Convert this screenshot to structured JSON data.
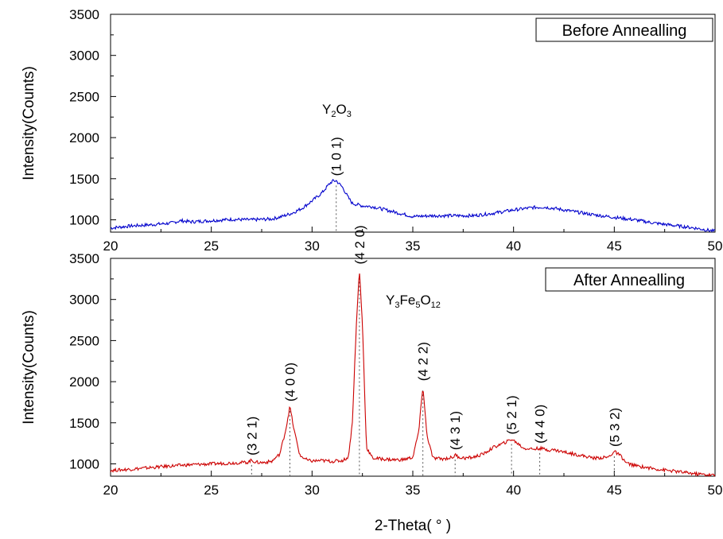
{
  "chart_data": [
    {
      "type": "line",
      "title": "",
      "legend": "Before Annealling",
      "legend_position": "top-right",
      "xlabel": "",
      "ylabel": "Intensity(Counts)",
      "xlim": [
        20,
        50
      ],
      "ylim": [
        850,
        3500
      ],
      "grid": false,
      "color": "#0000cc",
      "x_ticks": [
        "20",
        "25",
        "30",
        "35",
        "40",
        "45",
        "50"
      ],
      "y_ticks": [
        "1000",
        "1500",
        "2000",
        "2500",
        "3000",
        "3500"
      ],
      "series": [
        {
          "x": [
            20,
            21,
            22,
            23,
            23.5,
            24,
            25,
            26,
            27,
            28,
            28.5,
            29,
            29.5,
            30,
            30.5,
            30.8,
            31,
            31.2,
            31.5,
            31.8,
            32,
            32.5,
            33,
            34,
            35,
            36,
            37,
            38,
            39,
            40,
            41,
            41.5,
            42,
            43,
            44,
            45,
            46,
            47,
            48,
            49,
            50
          ],
          "y": [
            900,
            925,
            940,
            960,
            990,
            975,
            990,
            1005,
            1000,
            1010,
            1040,
            1080,
            1140,
            1230,
            1330,
            1420,
            1470,
            1475,
            1400,
            1270,
            1200,
            1170,
            1160,
            1100,
            1040,
            1050,
            1050,
            1050,
            1080,
            1120,
            1150,
            1155,
            1140,
            1100,
            1060,
            1030,
            1000,
            960,
            930,
            900,
            860
          ]
        }
      ],
      "peaks": [
        {
          "x": 31.2,
          "y": 1475,
          "hkl": "(1 0 1)"
        }
      ],
      "compound": {
        "base": "Y",
        "parts": [
          [
            "Y",
            ""
          ],
          [
            "2",
            "sub"
          ],
          [
            "O",
            ""
          ],
          [
            "3",
            "sub"
          ]
        ]
      }
    },
    {
      "type": "line",
      "title": "",
      "legend": "After Annealling",
      "legend_position": "top-right",
      "xlabel": "2-Theta( ° )",
      "ylabel": "Intensity(Counts)",
      "xlim": [
        20,
        50
      ],
      "ylim": [
        850,
        3500
      ],
      "grid": false,
      "color": "#cc0000",
      "x_ticks": [
        "20",
        "25",
        "30",
        "35",
        "40",
        "45",
        "50"
      ],
      "y_ticks": [
        "1000",
        "1500",
        "2000",
        "2500",
        "3000",
        "3500"
      ],
      "series": [
        {
          "x": [
            20,
            21,
            22,
            23,
            24,
            25,
            26,
            26.8,
            27,
            27.2,
            27.5,
            28,
            28.4,
            28.7,
            28.9,
            29.1,
            29.4,
            29.8,
            30,
            30.5,
            31,
            31.5,
            31.8,
            32,
            32.2,
            32.35,
            32.5,
            32.7,
            33,
            33.5,
            34,
            34.5,
            35,
            35.3,
            35.5,
            35.7,
            36,
            36.5,
            37,
            37.1,
            37.3,
            37.6,
            38,
            38.5,
            39,
            39.5,
            39.9,
            40.2,
            40.5,
            41,
            41.3,
            41.7,
            42,
            43,
            44,
            44.7,
            45,
            45.3,
            45.6,
            46,
            47,
            48,
            49,
            50
          ],
          "y": [
            920,
            935,
            955,
            975,
            990,
            1000,
            1010,
            1020,
            1045,
            1020,
            1015,
            1030,
            1120,
            1420,
            1700,
            1420,
            1100,
            1040,
            1035,
            1040,
            1030,
            1040,
            1080,
            1500,
            2700,
            3370,
            2700,
            1200,
            1070,
            1060,
            1050,
            1050,
            1080,
            1400,
            1950,
            1350,
            1070,
            1060,
            1080,
            1110,
            1080,
            1070,
            1080,
            1120,
            1200,
            1250,
            1300,
            1250,
            1190,
            1180,
            1190,
            1170,
            1170,
            1120,
            1070,
            1080,
            1150,
            1100,
            1010,
            980,
            940,
            910,
            880,
            860
          ]
        }
      ],
      "peaks": [
        {
          "x": 27.0,
          "y": 1045,
          "hkl": "(3 2 1)"
        },
        {
          "x": 28.9,
          "y": 1700,
          "hkl": "(4 0 0)"
        },
        {
          "x": 32.35,
          "y": 3370,
          "hkl": "(4 2 0)"
        },
        {
          "x": 35.5,
          "y": 1950,
          "hkl": "(4 2 2)"
        },
        {
          "x": 37.1,
          "y": 1110,
          "hkl": "(4 3 1)"
        },
        {
          "x": 39.9,
          "y": 1300,
          "hkl": "(5 2 1)"
        },
        {
          "x": 41.3,
          "y": 1190,
          "hkl": "(4 4 0)"
        },
        {
          "x": 45.0,
          "y": 1150,
          "hkl": "(5 3 2)"
        }
      ],
      "compound": {
        "base": "Y",
        "parts": [
          [
            "Y",
            ""
          ],
          [
            "3",
            "sub"
          ],
          [
            "Fe",
            ""
          ],
          [
            "5",
            "sub"
          ],
          [
            "O",
            ""
          ],
          [
            "12",
            "sub"
          ]
        ]
      }
    }
  ]
}
